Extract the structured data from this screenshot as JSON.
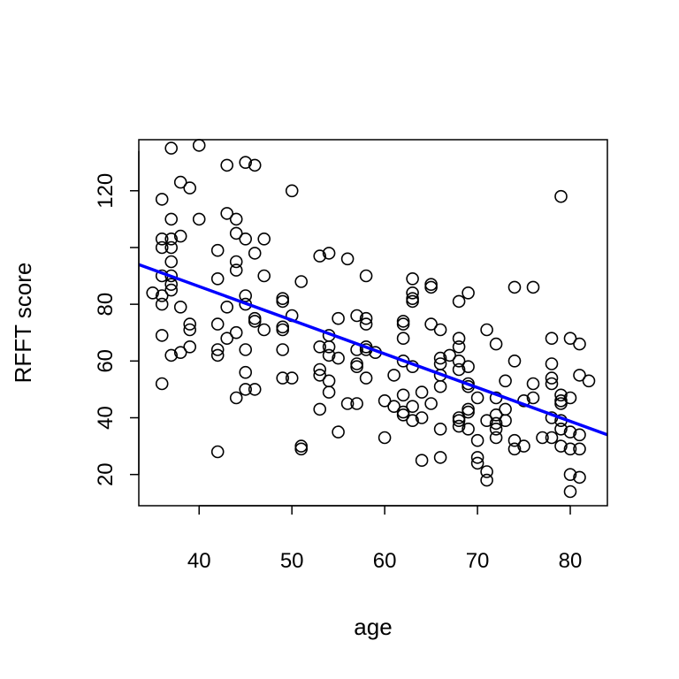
{
  "chart_data": {
    "type": "scatter",
    "title": "",
    "xlabel": "age",
    "ylabel": "RFFT score",
    "xlim": [
      33.5,
      84
    ],
    "ylim": [
      9,
      138
    ],
    "xticks": [
      "40",
      "50",
      "60",
      "70",
      "80"
    ],
    "yticks": [
      "20",
      "40",
      "60",
      "80",
      "120"
    ],
    "grid": false,
    "series": [
      {
        "marker": "open-circle",
        "color": "#000000",
        "points": [
          [
            35,
            84
          ],
          [
            36,
            117
          ],
          [
            36,
            103
          ],
          [
            36,
            100
          ],
          [
            36,
            90
          ],
          [
            36,
            83
          ],
          [
            36,
            80
          ],
          [
            36,
            69
          ],
          [
            36,
            52
          ],
          [
            37,
            135
          ],
          [
            37,
            110
          ],
          [
            37,
            103
          ],
          [
            37,
            100
          ],
          [
            37,
            95
          ],
          [
            37,
            90
          ],
          [
            37,
            87
          ],
          [
            37,
            85
          ],
          [
            37,
            62
          ],
          [
            38,
            123
          ],
          [
            38,
            104
          ],
          [
            38,
            79
          ],
          [
            38,
            63
          ],
          [
            39,
            121
          ],
          [
            39,
            73
          ],
          [
            39,
            71
          ],
          [
            39,
            65
          ],
          [
            40,
            136
          ],
          [
            40,
            110
          ],
          [
            42,
            99
          ],
          [
            42,
            89
          ],
          [
            42,
            73
          ],
          [
            42,
            64
          ],
          [
            42,
            62
          ],
          [
            42,
            28
          ],
          [
            43,
            129
          ],
          [
            43,
            112
          ],
          [
            43,
            79
          ],
          [
            43,
            68
          ],
          [
            44,
            110
          ],
          [
            44,
            105
          ],
          [
            44,
            95
          ],
          [
            44,
            92
          ],
          [
            44,
            70
          ],
          [
            44,
            47
          ],
          [
            45,
            130
          ],
          [
            45,
            103
          ],
          [
            45,
            83
          ],
          [
            45,
            80
          ],
          [
            45,
            64
          ],
          [
            45,
            56
          ],
          [
            45,
            50
          ],
          [
            46,
            129
          ],
          [
            46,
            98
          ],
          [
            46,
            75
          ],
          [
            46,
            74
          ],
          [
            46,
            50
          ],
          [
            47,
            103
          ],
          [
            47,
            90
          ],
          [
            47,
            71
          ],
          [
            49,
            82
          ],
          [
            49,
            81
          ],
          [
            49,
            72
          ],
          [
            49,
            71
          ],
          [
            49,
            64
          ],
          [
            49,
            54
          ],
          [
            50,
            120
          ],
          [
            50,
            76
          ],
          [
            50,
            54
          ],
          [
            51,
            88
          ],
          [
            51,
            30
          ],
          [
            51,
            29
          ],
          [
            53,
            97
          ],
          [
            53,
            65
          ],
          [
            53,
            57
          ],
          [
            53,
            55
          ],
          [
            53,
            43
          ],
          [
            54,
            98
          ],
          [
            54,
            69
          ],
          [
            54,
            65
          ],
          [
            54,
            62
          ],
          [
            54,
            53
          ],
          [
            54,
            49
          ],
          [
            55,
            75
          ],
          [
            55,
            61
          ],
          [
            55,
            35
          ],
          [
            56,
            96
          ],
          [
            56,
            45
          ],
          [
            57,
            76
          ],
          [
            57,
            64
          ],
          [
            57,
            59
          ],
          [
            57,
            58
          ],
          [
            57,
            45
          ],
          [
            58,
            90
          ],
          [
            58,
            75
          ],
          [
            58,
            73
          ],
          [
            58,
            65
          ],
          [
            58,
            64
          ],
          [
            58,
            54
          ],
          [
            59,
            63
          ],
          [
            60,
            46
          ],
          [
            60,
            33
          ],
          [
            61,
            55
          ],
          [
            61,
            44
          ],
          [
            62,
            74
          ],
          [
            62,
            73
          ],
          [
            62,
            68
          ],
          [
            62,
            60
          ],
          [
            62,
            48
          ],
          [
            62,
            42
          ],
          [
            62,
            41
          ],
          [
            63,
            89
          ],
          [
            63,
            84
          ],
          [
            63,
            82
          ],
          [
            63,
            81
          ],
          [
            63,
            58
          ],
          [
            63,
            44
          ],
          [
            63,
            39
          ],
          [
            64,
            49
          ],
          [
            64,
            40
          ],
          [
            64,
            25
          ],
          [
            65,
            87
          ],
          [
            65,
            86
          ],
          [
            65,
            73
          ],
          [
            65,
            45
          ],
          [
            66,
            71
          ],
          [
            66,
            61
          ],
          [
            66,
            59
          ],
          [
            66,
            55
          ],
          [
            66,
            51
          ],
          [
            66,
            36
          ],
          [
            66,
            26
          ],
          [
            67,
            62
          ],
          [
            68,
            81
          ],
          [
            68,
            68
          ],
          [
            68,
            65
          ],
          [
            68,
            60
          ],
          [
            68,
            57
          ],
          [
            68,
            40
          ],
          [
            68,
            39
          ],
          [
            68,
            37
          ],
          [
            69,
            84
          ],
          [
            69,
            58
          ],
          [
            69,
            52
          ],
          [
            69,
            51
          ],
          [
            69,
            43
          ],
          [
            69,
            42
          ],
          [
            69,
            36
          ],
          [
            70,
            47
          ],
          [
            70,
            32
          ],
          [
            70,
            26
          ],
          [
            70,
            24
          ],
          [
            71,
            71
          ],
          [
            71,
            39
          ],
          [
            71,
            21
          ],
          [
            71,
            18
          ],
          [
            72,
            66
          ],
          [
            72,
            47
          ],
          [
            72,
            41
          ],
          [
            72,
            38
          ],
          [
            72,
            36
          ],
          [
            72,
            33
          ],
          [
            73,
            53
          ],
          [
            73,
            43
          ],
          [
            73,
            39
          ],
          [
            74,
            86
          ],
          [
            74,
            60
          ],
          [
            74,
            32
          ],
          [
            74,
            29
          ],
          [
            75,
            46
          ],
          [
            75,
            30
          ],
          [
            76,
            86
          ],
          [
            76,
            52
          ],
          [
            76,
            47
          ],
          [
            77,
            33
          ],
          [
            78,
            68
          ],
          [
            78,
            59
          ],
          [
            78,
            54
          ],
          [
            78,
            52
          ],
          [
            78,
            40
          ],
          [
            78,
            33
          ],
          [
            79,
            118
          ],
          [
            79,
            48
          ],
          [
            79,
            46
          ],
          [
            79,
            45
          ],
          [
            79,
            39
          ],
          [
            79,
            36
          ],
          [
            79,
            30
          ],
          [
            80,
            68
          ],
          [
            80,
            47
          ],
          [
            80,
            35
          ],
          [
            80,
            29
          ],
          [
            80,
            20
          ],
          [
            80,
            14
          ],
          [
            81,
            66
          ],
          [
            81,
            55
          ],
          [
            81,
            34
          ],
          [
            81,
            29
          ],
          [
            81,
            19
          ],
          [
            82,
            53
          ]
        ]
      }
    ],
    "fit_line": {
      "color": "#0000ff",
      "x": [
        33.5,
        84
      ],
      "y": [
        94,
        34
      ]
    }
  }
}
